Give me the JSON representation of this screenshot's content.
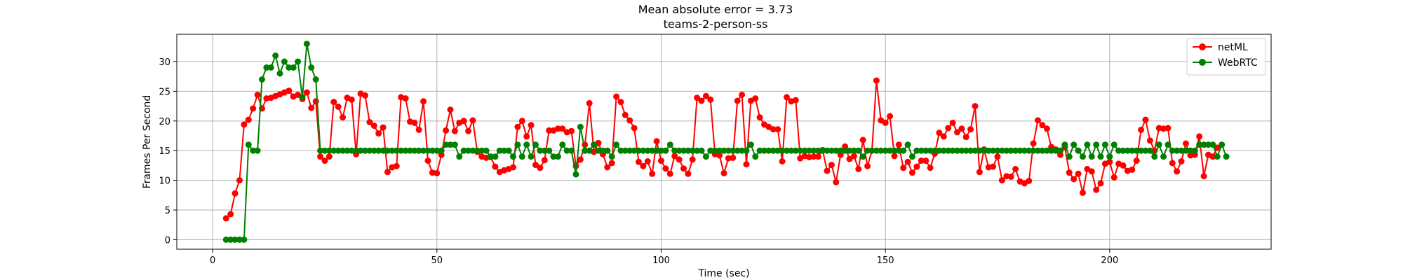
{
  "chart_data": {
    "type": "line",
    "title": "Mean absolute error = 3.73",
    "subtitle": "teams-2-person-ss",
    "xlabel": "Time (sec)",
    "ylabel": "Frames Per Second",
    "xlim": [
      -8,
      236
    ],
    "ylim": [
      -1.6,
      34.6
    ],
    "xticks": [
      0,
      50,
      100,
      150,
      200
    ],
    "yticks": [
      0,
      5,
      10,
      15,
      20,
      25,
      30
    ],
    "grid": true,
    "legend_position": "top-right",
    "x_start": 3,
    "x_step": 1,
    "series": [
      {
        "name": "netML",
        "color": "#ff0000",
        "values": [
          3.6,
          4.3,
          7.8,
          10.0,
          19.4,
          20.2,
          22.1,
          24.4,
          22.1,
          23.8,
          23.9,
          24.2,
          24.5,
          24.8,
          25.1,
          24.1,
          24.4,
          23.7,
          24.8,
          22.2,
          23.3,
          14.0,
          13.3,
          14.0,
          23.2,
          22.4,
          20.6,
          23.9,
          23.6,
          14.4,
          24.6,
          24.3,
          19.8,
          19.2,
          17.9,
          18.9,
          11.4,
          12.2,
          12.4,
          24.0,
          23.8,
          19.9,
          19.7,
          18.5,
          23.3,
          13.3,
          11.3,
          11.2,
          14.3,
          18.4,
          21.9,
          18.3,
          19.7,
          20.0,
          18.3,
          20.1,
          14.8,
          14.0,
          13.8,
          13.9,
          12.3,
          11.4,
          11.7,
          11.9,
          12.2,
          19.0,
          20.0,
          17.4,
          19.3,
          12.6,
          12.1,
          13.4,
          18.4,
          18.4,
          18.7,
          18.7,
          18.1,
          18.3,
          12.4,
          13.5,
          16.0,
          23.0,
          14.8,
          16.3,
          14.4,
          12.2,
          12.9,
          24.1,
          23.2,
          21.0,
          20.1,
          18.8,
          13.1,
          12.4,
          13.2,
          11.1,
          16.6,
          13.3,
          12.0,
          11.1,
          14.1,
          13.5,
          12.0,
          11.1,
          13.5,
          23.9,
          23.4,
          24.2,
          23.6,
          14.4,
          14.2,
          11.2,
          13.7,
          13.8,
          23.4,
          24.4,
          12.7,
          23.4,
          23.8,
          20.6,
          19.4,
          19.0,
          18.6,
          18.6,
          13.2,
          24.0,
          23.3,
          23.5,
          13.7,
          14.1,
          13.9,
          14.0,
          14.0,
          15.1,
          11.6,
          12.6,
          9.7,
          14.3,
          15.7,
          13.6,
          14.1,
          11.9,
          16.8,
          12.4,
          15.0,
          26.8,
          20.1,
          19.7,
          20.8,
          14.1,
          16.0,
          12.1,
          13.1,
          11.3,
          12.3,
          13.3,
          13.3,
          12.1,
          14.5,
          18.0,
          17.4,
          18.8,
          19.7,
          18.1,
          18.7,
          17.3,
          18.6,
          22.5,
          11.4,
          15.2,
          12.2,
          12.3,
          14.0,
          10.0,
          10.7,
          10.6,
          11.9,
          9.8,
          9.5,
          9.9,
          16.2,
          20.1,
          19.3,
          18.7,
          15.6,
          15.2,
          14.3,
          15.6,
          11.3,
          10.2,
          11.1,
          7.9,
          11.9,
          11.5,
          8.4,
          9.5,
          12.8,
          13.1,
          10.5,
          12.8,
          12.5,
          11.6,
          11.8,
          13.3,
          18.5,
          20.2,
          16.7,
          15.0,
          18.8,
          18.7,
          18.8,
          12.9,
          11.5,
          13.2,
          16.2,
          14.2,
          14.3,
          17.4,
          10.7,
          14.3,
          14.0,
          15.5
        ]
      },
      {
        "name": "WebRTC",
        "color": "#008000",
        "values": [
          0,
          0,
          0,
          0,
          0,
          16,
          15,
          15,
          27,
          29,
          29,
          31,
          28,
          30,
          29,
          29,
          30,
          24,
          33,
          29,
          27,
          15,
          15,
          15,
          15,
          15,
          15,
          15,
          15,
          15,
          15,
          15,
          15,
          15,
          15,
          15,
          15,
          15,
          15,
          15,
          15,
          15,
          15,
          15,
          15,
          15,
          15,
          15,
          15,
          16,
          16,
          16,
          14,
          15,
          15,
          15,
          15,
          15,
          15,
          14,
          14,
          15,
          15,
          15,
          14,
          16,
          14,
          16,
          14,
          16,
          15,
          15,
          15,
          14,
          14,
          16,
          15,
          15,
          11,
          19,
          15,
          15,
          16,
          15,
          15,
          15,
          14,
          16,
          15,
          15,
          15,
          15,
          15,
          15,
          15,
          15,
          15,
          15,
          15,
          16,
          15,
          15,
          15,
          15,
          15,
          15,
          15,
          14,
          15,
          15,
          15,
          15,
          15,
          15,
          15,
          15,
          15,
          16,
          14,
          15,
          15,
          15,
          15,
          15,
          15,
          15,
          15,
          15,
          15,
          15,
          15,
          15,
          15,
          15,
          15,
          15,
          15,
          15,
          15,
          15,
          15,
          15,
          14,
          15,
          15,
          15,
          15,
          15,
          15,
          15,
          15,
          15,
          16,
          14,
          15,
          15,
          15,
          15,
          15,
          15,
          15,
          15,
          15,
          15,
          15,
          15,
          15,
          15,
          15,
          15,
          15,
          15,
          15,
          15,
          15,
          15,
          15,
          15,
          15,
          15,
          15,
          15,
          15,
          15,
          15,
          15,
          15,
          16,
          14,
          16,
          15,
          14,
          16,
          14,
          16,
          14,
          16,
          14,
          16,
          15,
          15,
          15,
          15,
          15,
          15,
          15,
          15,
          14,
          16,
          14,
          16,
          15,
          15,
          15,
          15,
          15,
          15,
          16,
          16,
          16,
          16,
          14,
          16,
          14
        ]
      }
    ]
  }
}
